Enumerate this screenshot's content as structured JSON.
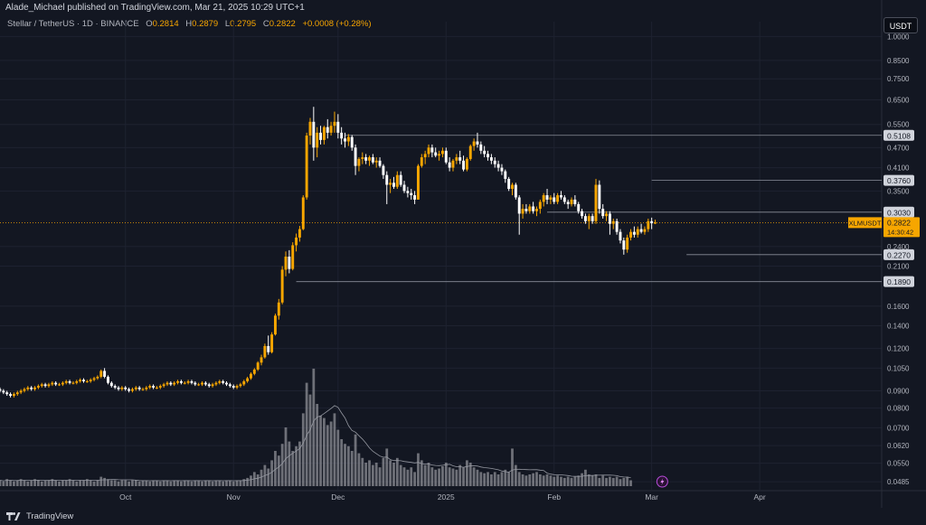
{
  "header": {
    "publisher": "Alade_Michael published on TradingView.com, Mar 21, 2025 10:29 UTC+1",
    "symbol": "Stellar / TetherUS · 1D · BINANCE",
    "open_label": "O",
    "open": "0.2814",
    "high_label": "H",
    "high": "0.2879",
    "low_label": "L",
    "low": "0.2795",
    "close_label": "C",
    "close": "0.2822",
    "change": "+0.0008 (+0.28%)"
  },
  "toolbar": {
    "currency_label": "USDT"
  },
  "footer": {
    "brand": "TradingView",
    "brand_icon": "tradingview-logo-icon"
  },
  "colors": {
    "background": "#131722",
    "up_candle": "#f7a600",
    "down_candle": "#ffffff",
    "grid": "#1e2230",
    "level_line": "#8a8e99",
    "price_tag": "#f7a600",
    "volume_bar": "#8d8f96",
    "volume_ma": "#9598a1"
  },
  "chart_data": {
    "type": "candlestick",
    "y_scale": "log",
    "ylim": [
      0.0465,
      1.04
    ],
    "y_ticks": [
      "1.0000",
      "0.8500",
      "0.7500",
      "0.6500",
      "0.5500",
      "0.4700",
      "0.4100",
      "0.3500",
      "0.2400",
      "0.2100",
      "0.1600",
      "0.1400",
      "0.1200",
      "0.1050",
      "0.0900",
      "0.0800",
      "0.0700",
      "0.0620",
      "0.0550",
      "0.0485"
    ],
    "x_ticks": [
      "Oct",
      "Nov",
      "Dec",
      "2025",
      "Feb",
      "Mar",
      "Apr"
    ],
    "x_tick_dates": [
      "2024-10-01",
      "2024-11-01",
      "2024-12-01",
      "2025-01-01",
      "2025-02-01",
      "2025-03-01",
      "2025-04-01"
    ],
    "x_range": [
      "2024-08-26",
      "2025-05-06"
    ],
    "levels": [
      {
        "price": 0.5108,
        "label": "0.5108",
        "from": "2024-12-03"
      },
      {
        "price": 0.376,
        "label": "0.3760",
        "from": "2025-03-01"
      },
      {
        "price": 0.303,
        "label": "0.3030",
        "from": "2025-01-30"
      },
      {
        "price": 0.227,
        "label": "0.2270",
        "from": "2025-03-11"
      },
      {
        "price": 0.189,
        "label": "0.1890",
        "from": "2024-11-19"
      }
    ],
    "current_price": {
      "symbol": "XLMUSDT",
      "value": "0.2822",
      "countdown": "14:30:42",
      "price": 0.2822
    },
    "start_date": "2024-08-26",
    "candles": [
      [
        0.091,
        0.092,
        0.089,
        0.09
      ],
      [
        0.09,
        0.091,
        0.088,
        0.089
      ],
      [
        0.089,
        0.09,
        0.087,
        0.088
      ],
      [
        0.088,
        0.089,
        0.086,
        0.087
      ],
      [
        0.087,
        0.089,
        0.086,
        0.088
      ],
      [
        0.088,
        0.09,
        0.087,
        0.089
      ],
      [
        0.089,
        0.091,
        0.088,
        0.09
      ],
      [
        0.09,
        0.092,
        0.089,
        0.091
      ],
      [
        0.091,
        0.093,
        0.09,
        0.092
      ],
      [
        0.092,
        0.093,
        0.09,
        0.091
      ],
      [
        0.091,
        0.093,
        0.09,
        0.092
      ],
      [
        0.092,
        0.094,
        0.091,
        0.093
      ],
      [
        0.093,
        0.095,
        0.092,
        0.094
      ],
      [
        0.094,
        0.095,
        0.092,
        0.093
      ],
      [
        0.093,
        0.095,
        0.092,
        0.094
      ],
      [
        0.094,
        0.096,
        0.093,
        0.095
      ],
      [
        0.095,
        0.096,
        0.093,
        0.094
      ],
      [
        0.094,
        0.095,
        0.093,
        0.094
      ],
      [
        0.094,
        0.096,
        0.093,
        0.095
      ],
      [
        0.095,
        0.097,
        0.094,
        0.096
      ],
      [
        0.096,
        0.097,
        0.094,
        0.095
      ],
      [
        0.095,
        0.096,
        0.094,
        0.095
      ],
      [
        0.095,
        0.097,
        0.094,
        0.096
      ],
      [
        0.096,
        0.098,
        0.095,
        0.097
      ],
      [
        0.097,
        0.098,
        0.095,
        0.096
      ],
      [
        0.096,
        0.097,
        0.095,
        0.096
      ],
      [
        0.096,
        0.098,
        0.095,
        0.097
      ],
      [
        0.097,
        0.099,
        0.096,
        0.098
      ],
      [
        0.098,
        0.1,
        0.097,
        0.099
      ],
      [
        0.099,
        0.104,
        0.098,
        0.103
      ],
      [
        0.103,
        0.105,
        0.098,
        0.099
      ],
      [
        0.099,
        0.1,
        0.094,
        0.095
      ],
      [
        0.095,
        0.096,
        0.092,
        0.093
      ],
      [
        0.093,
        0.094,
        0.091,
        0.092
      ],
      [
        0.092,
        0.093,
        0.09,
        0.091
      ],
      [
        0.091,
        0.093,
        0.09,
        0.092
      ],
      [
        0.092,
        0.093,
        0.09,
        0.091
      ],
      [
        0.091,
        0.092,
        0.089,
        0.09
      ],
      [
        0.09,
        0.092,
        0.089,
        0.091
      ],
      [
        0.091,
        0.093,
        0.09,
        0.092
      ],
      [
        0.092,
        0.093,
        0.09,
        0.091
      ],
      [
        0.091,
        0.092,
        0.09,
        0.091
      ],
      [
        0.091,
        0.093,
        0.09,
        0.092
      ],
      [
        0.092,
        0.094,
        0.091,
        0.093
      ],
      [
        0.093,
        0.094,
        0.091,
        0.092
      ],
      [
        0.092,
        0.093,
        0.091,
        0.092
      ],
      [
        0.092,
        0.094,
        0.091,
        0.093
      ],
      [
        0.093,
        0.095,
        0.092,
        0.094
      ],
      [
        0.094,
        0.096,
        0.093,
        0.095
      ],
      [
        0.095,
        0.096,
        0.093,
        0.094
      ],
      [
        0.094,
        0.096,
        0.093,
        0.095
      ],
      [
        0.095,
        0.097,
        0.094,
        0.096
      ],
      [
        0.096,
        0.097,
        0.094,
        0.095
      ],
      [
        0.095,
        0.096,
        0.094,
        0.095
      ],
      [
        0.095,
        0.097,
        0.094,
        0.096
      ],
      [
        0.096,
        0.097,
        0.094,
        0.095
      ],
      [
        0.095,
        0.096,
        0.093,
        0.094
      ],
      [
        0.094,
        0.095,
        0.093,
        0.094
      ],
      [
        0.094,
        0.096,
        0.093,
        0.095
      ],
      [
        0.095,
        0.096,
        0.093,
        0.094
      ],
      [
        0.094,
        0.095,
        0.092,
        0.093
      ],
      [
        0.093,
        0.095,
        0.092,
        0.094
      ],
      [
        0.094,
        0.096,
        0.093,
        0.095
      ],
      [
        0.095,
        0.097,
        0.094,
        0.096
      ],
      [
        0.096,
        0.097,
        0.094,
        0.095
      ],
      [
        0.095,
        0.096,
        0.093,
        0.094
      ],
      [
        0.094,
        0.095,
        0.092,
        0.093
      ],
      [
        0.093,
        0.094,
        0.091,
        0.092
      ],
      [
        0.092,
        0.094,
        0.091,
        0.093
      ],
      [
        0.093,
        0.095,
        0.092,
        0.094
      ],
      [
        0.094,
        0.097,
        0.093,
        0.096
      ],
      [
        0.096,
        0.099,
        0.095,
        0.098
      ],
      [
        0.098,
        0.102,
        0.097,
        0.101
      ],
      [
        0.101,
        0.105,
        0.1,
        0.104
      ],
      [
        0.104,
        0.11,
        0.103,
        0.109
      ],
      [
        0.109,
        0.115,
        0.107,
        0.113
      ],
      [
        0.113,
        0.124,
        0.112,
        0.122
      ],
      [
        0.122,
        0.131,
        0.115,
        0.117
      ],
      [
        0.117,
        0.134,
        0.116,
        0.132
      ],
      [
        0.132,
        0.152,
        0.131,
        0.15
      ],
      [
        0.15,
        0.168,
        0.146,
        0.164
      ],
      [
        0.164,
        0.21,
        0.162,
        0.205
      ],
      [
        0.205,
        0.232,
        0.196,
        0.224
      ],
      [
        0.224,
        0.234,
        0.2,
        0.206
      ],
      [
        0.206,
        0.247,
        0.204,
        0.242
      ],
      [
        0.242,
        0.262,
        0.232,
        0.255
      ],
      [
        0.255,
        0.276,
        0.248,
        0.27
      ],
      [
        0.27,
        0.34,
        0.268,
        0.335
      ],
      [
        0.335,
        0.52,
        0.33,
        0.51
      ],
      [
        0.51,
        0.575,
        0.48,
        0.56
      ],
      [
        0.56,
        0.62,
        0.43,
        0.47
      ],
      [
        0.47,
        0.54,
        0.44,
        0.52
      ],
      [
        0.52,
        0.545,
        0.48,
        0.495
      ],
      [
        0.495,
        0.545,
        0.48,
        0.54
      ],
      [
        0.54,
        0.57,
        0.5,
        0.52
      ],
      [
        0.52,
        0.56,
        0.51,
        0.545
      ],
      [
        0.545,
        0.6,
        0.52,
        0.56
      ],
      [
        0.56,
        0.59,
        0.5,
        0.52
      ],
      [
        0.52,
        0.54,
        0.48,
        0.5
      ],
      [
        0.5,
        0.52,
        0.47,
        0.49
      ],
      [
        0.49,
        0.515,
        0.475,
        0.505
      ],
      [
        0.505,
        0.512,
        0.46,
        0.47
      ],
      [
        0.47,
        0.48,
        0.39,
        0.415
      ],
      [
        0.415,
        0.44,
        0.4,
        0.435
      ],
      [
        0.435,
        0.455,
        0.42,
        0.44
      ],
      [
        0.44,
        0.45,
        0.42,
        0.43
      ],
      [
        0.43,
        0.445,
        0.415,
        0.44
      ],
      [
        0.44,
        0.45,
        0.42,
        0.425
      ],
      [
        0.425,
        0.44,
        0.41,
        0.43
      ],
      [
        0.43,
        0.44,
        0.41,
        0.415
      ],
      [
        0.415,
        0.42,
        0.38,
        0.39
      ],
      [
        0.39,
        0.4,
        0.32,
        0.365
      ],
      [
        0.365,
        0.38,
        0.345,
        0.37
      ],
      [
        0.37,
        0.385,
        0.355,
        0.36
      ],
      [
        0.36,
        0.4,
        0.355,
        0.39
      ],
      [
        0.39,
        0.4,
        0.36,
        0.365
      ],
      [
        0.365,
        0.375,
        0.345,
        0.35
      ],
      [
        0.35,
        0.36,
        0.335,
        0.345
      ],
      [
        0.345,
        0.355,
        0.33,
        0.34
      ],
      [
        0.34,
        0.35,
        0.32,
        0.33
      ],
      [
        0.33,
        0.42,
        0.33,
        0.415
      ],
      [
        0.415,
        0.45,
        0.41,
        0.44
      ],
      [
        0.44,
        0.46,
        0.42,
        0.45
      ],
      [
        0.45,
        0.48,
        0.44,
        0.47
      ],
      [
        0.47,
        0.48,
        0.44,
        0.455
      ],
      [
        0.455,
        0.47,
        0.44,
        0.445
      ],
      [
        0.445,
        0.46,
        0.43,
        0.45
      ],
      [
        0.45,
        0.47,
        0.44,
        0.46
      ],
      [
        0.46,
        0.47,
        0.42,
        0.425
      ],
      [
        0.425,
        0.44,
        0.4,
        0.41
      ],
      [
        0.41,
        0.435,
        0.4,
        0.43
      ],
      [
        0.43,
        0.45,
        0.42,
        0.44
      ],
      [
        0.44,
        0.46,
        0.42,
        0.43
      ],
      [
        0.43,
        0.445,
        0.4,
        0.405
      ],
      [
        0.405,
        0.44,
        0.4,
        0.435
      ],
      [
        0.435,
        0.48,
        0.43,
        0.475
      ],
      [
        0.475,
        0.5,
        0.46,
        0.49
      ],
      [
        0.49,
        0.52,
        0.47,
        0.48
      ],
      [
        0.48,
        0.49,
        0.45,
        0.46
      ],
      [
        0.46,
        0.475,
        0.44,
        0.45
      ],
      [
        0.45,
        0.46,
        0.43,
        0.44
      ],
      [
        0.44,
        0.45,
        0.42,
        0.43
      ],
      [
        0.43,
        0.44,
        0.41,
        0.42
      ],
      [
        0.42,
        0.43,
        0.4,
        0.41
      ],
      [
        0.41,
        0.42,
        0.39,
        0.4
      ],
      [
        0.4,
        0.405,
        0.37,
        0.38
      ],
      [
        0.38,
        0.385,
        0.35,
        0.355
      ],
      [
        0.355,
        0.37,
        0.34,
        0.365
      ],
      [
        0.365,
        0.37,
        0.33,
        0.335
      ],
      [
        0.335,
        0.34,
        0.26,
        0.3
      ],
      [
        0.3,
        0.32,
        0.29,
        0.31
      ],
      [
        0.31,
        0.32,
        0.3,
        0.305
      ],
      [
        0.305,
        0.32,
        0.3,
        0.315
      ],
      [
        0.315,
        0.325,
        0.3,
        0.305
      ],
      [
        0.305,
        0.315,
        0.295,
        0.31
      ],
      [
        0.31,
        0.33,
        0.3,
        0.325
      ],
      [
        0.325,
        0.345,
        0.315,
        0.34
      ],
      [
        0.34,
        0.355,
        0.32,
        0.33
      ],
      [
        0.33,
        0.34,
        0.32,
        0.335
      ],
      [
        0.335,
        0.345,
        0.32,
        0.325
      ],
      [
        0.325,
        0.345,
        0.32,
        0.34
      ],
      [
        0.34,
        0.35,
        0.33,
        0.335
      ],
      [
        0.335,
        0.34,
        0.32,
        0.325
      ],
      [
        0.325,
        0.33,
        0.31,
        0.32
      ],
      [
        0.32,
        0.335,
        0.315,
        0.33
      ],
      [
        0.33,
        0.34,
        0.315,
        0.32
      ],
      [
        0.32,
        0.325,
        0.3,
        0.305
      ],
      [
        0.305,
        0.31,
        0.29,
        0.295
      ],
      [
        0.295,
        0.3,
        0.28,
        0.285
      ],
      [
        0.285,
        0.3,
        0.27,
        0.295
      ],
      [
        0.295,
        0.3,
        0.28,
        0.285
      ],
      [
        0.285,
        0.38,
        0.28,
        0.365
      ],
      [
        0.365,
        0.376,
        0.3,
        0.31
      ],
      [
        0.31,
        0.32,
        0.29,
        0.295
      ],
      [
        0.295,
        0.305,
        0.285,
        0.3
      ],
      [
        0.3,
        0.305,
        0.26,
        0.28
      ],
      [
        0.28,
        0.29,
        0.27,
        0.285
      ],
      [
        0.285,
        0.29,
        0.26,
        0.265
      ],
      [
        0.265,
        0.27,
        0.245,
        0.25
      ],
      [
        0.25,
        0.255,
        0.227,
        0.235
      ],
      [
        0.235,
        0.26,
        0.23,
        0.255
      ],
      [
        0.255,
        0.27,
        0.25,
        0.265
      ],
      [
        0.265,
        0.275,
        0.255,
        0.26
      ],
      [
        0.26,
        0.275,
        0.255,
        0.27
      ],
      [
        0.27,
        0.28,
        0.262,
        0.265
      ],
      [
        0.265,
        0.275,
        0.26,
        0.27
      ],
      [
        0.27,
        0.29,
        0.265,
        0.285
      ],
      [
        0.285,
        0.292,
        0.27,
        0.281
      ],
      [
        0.2814,
        0.2879,
        0.2795,
        0.2822
      ]
    ],
    "volume": [
      0.05,
      0.04,
      0.06,
      0.05,
      0.04,
      0.05,
      0.06,
      0.05,
      0.04,
      0.05,
      0.06,
      0.05,
      0.04,
      0.05,
      0.05,
      0.06,
      0.05,
      0.04,
      0.05,
      0.05,
      0.06,
      0.05,
      0.04,
      0.05,
      0.05,
      0.06,
      0.05,
      0.04,
      0.05,
      0.08,
      0.07,
      0.06,
      0.05,
      0.05,
      0.04,
      0.05,
      0.05,
      0.04,
      0.05,
      0.05,
      0.04,
      0.05,
      0.05,
      0.04,
      0.05,
      0.05,
      0.04,
      0.05,
      0.05,
      0.04,
      0.05,
      0.05,
      0.04,
      0.05,
      0.05,
      0.04,
      0.05,
      0.05,
      0.04,
      0.05,
      0.05,
      0.04,
      0.05,
      0.05,
      0.04,
      0.05,
      0.05,
      0.04,
      0.05,
      0.05,
      0.06,
      0.07,
      0.09,
      0.12,
      0.1,
      0.14,
      0.18,
      0.15,
      0.22,
      0.3,
      0.26,
      0.36,
      0.5,
      0.38,
      0.3,
      0.34,
      0.38,
      0.62,
      0.88,
      0.78,
      1.0,
      0.7,
      0.6,
      0.58,
      0.52,
      0.55,
      0.62,
      0.48,
      0.4,
      0.36,
      0.34,
      0.3,
      0.44,
      0.28,
      0.24,
      0.2,
      0.22,
      0.18,
      0.2,
      0.16,
      0.24,
      0.32,
      0.22,
      0.2,
      0.24,
      0.18,
      0.16,
      0.14,
      0.16,
      0.12,
      0.28,
      0.22,
      0.18,
      0.2,
      0.16,
      0.14,
      0.15,
      0.17,
      0.2,
      0.16,
      0.15,
      0.14,
      0.18,
      0.16,
      0.22,
      0.2,
      0.16,
      0.14,
      0.12,
      0.11,
      0.12,
      0.1,
      0.12,
      0.1,
      0.12,
      0.14,
      0.12,
      0.32,
      0.18,
      0.12,
      0.1,
      0.09,
      0.1,
      0.11,
      0.12,
      0.1,
      0.09,
      0.1,
      0.09,
      0.08,
      0.09,
      0.08,
      0.07,
      0.08,
      0.07,
      0.08,
      0.09,
      0.11,
      0.14,
      0.1,
      0.09,
      0.1,
      0.07,
      0.09,
      0.07,
      0.08,
      0.07,
      0.08,
      0.06,
      0.07,
      0.08,
      0.05
    ]
  }
}
